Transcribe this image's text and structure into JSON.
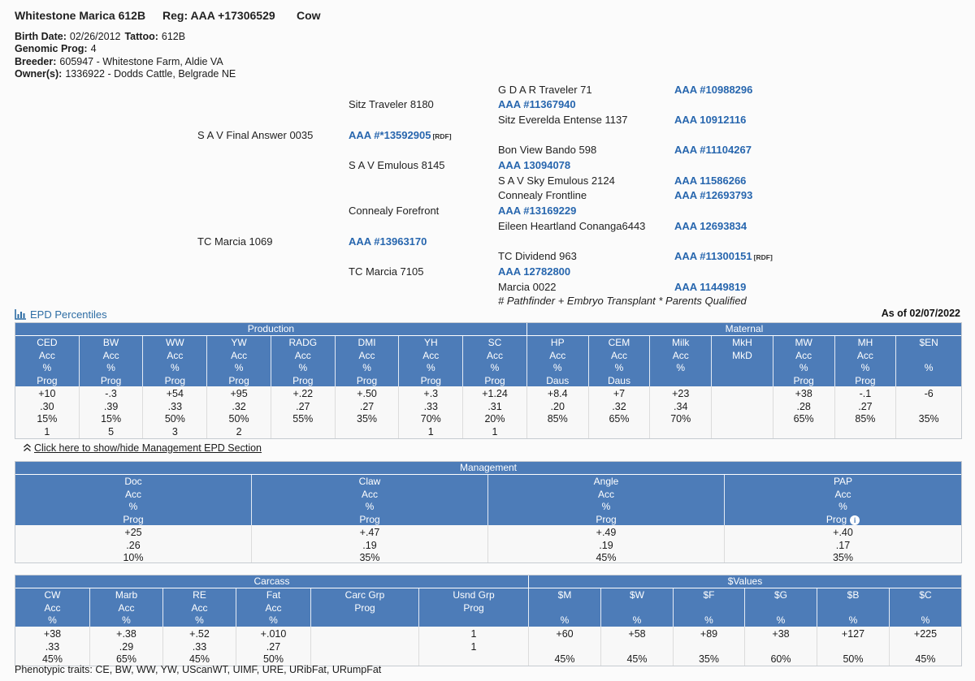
{
  "header": {
    "title": "Whitestone Marica 612B",
    "reg": "Reg: AAA +17306529",
    "sex": "Cow"
  },
  "info": {
    "lines": [
      [
        {
          "label": "Birth Date:",
          "value": "02/26/2012"
        },
        {
          "label": "Tattoo:",
          "value": "612B"
        }
      ],
      [
        {
          "label": "Genomic Prog:",
          "value": "4"
        }
      ],
      [
        {
          "label": "Breeder:",
          "value": "605947 - Whitestone Farm, Aldie VA"
        }
      ],
      [
        {
          "label": "Owner(s):",
          "value": "1336922 - Dodds Cattle, Belgrade NE"
        }
      ]
    ]
  },
  "pedigree": {
    "entries": [
      {
        "row": 1,
        "col": 3,
        "type": "name",
        "text": "G D A R Traveler 71"
      },
      {
        "row": 1,
        "col": 4,
        "type": "reg",
        "text": "AAA #10988296"
      },
      {
        "row": 2,
        "col": 2,
        "type": "name",
        "text": "Sitz Traveler 8180"
      },
      {
        "row": 2,
        "col": 3,
        "type": "reg",
        "text": "AAA #11367940"
      },
      {
        "row": 3,
        "col": 3,
        "type": "name",
        "text": "Sitz Everelda Entense 1137"
      },
      {
        "row": 3,
        "col": 4,
        "type": "reg",
        "text": "AAA 10912116"
      },
      {
        "row": 4,
        "col": 1,
        "type": "name",
        "text": "S A V Final Answer 0035"
      },
      {
        "row": 4,
        "col": 2,
        "type": "reg",
        "text": "AAA #*13592905",
        "suffix": "[RDF]"
      },
      {
        "row": 5,
        "col": 3,
        "type": "name",
        "text": "Bon View Bando 598"
      },
      {
        "row": 5,
        "col": 4,
        "type": "reg",
        "text": "AAA #11104267"
      },
      {
        "row": 6,
        "col": 2,
        "type": "name",
        "text": "S A V Emulous 8145"
      },
      {
        "row": 6,
        "col": 3,
        "type": "reg",
        "text": "AAA 13094078"
      },
      {
        "row": 7,
        "col": 3,
        "type": "name",
        "text": "S A V Sky Emulous 2124"
      },
      {
        "row": 7,
        "col": 4,
        "type": "reg",
        "text": "AAA 11586266"
      },
      {
        "row": 8,
        "col": 3,
        "type": "name",
        "text": "Connealy Frontline"
      },
      {
        "row": 8,
        "col": 4,
        "type": "reg",
        "text": "AAA #12693793"
      },
      {
        "row": 9,
        "col": 2,
        "type": "name",
        "text": "Connealy Forefront"
      },
      {
        "row": 9,
        "col": 3,
        "type": "reg",
        "text": "AAA #13169229"
      },
      {
        "row": 10,
        "col": 3,
        "type": "name",
        "text": "Eileen Heartland Conanga6443"
      },
      {
        "row": 10,
        "col": 4,
        "type": "reg",
        "text": "AAA 12693834"
      },
      {
        "row": 11,
        "col": 1,
        "type": "name",
        "text": "TC Marcia 1069"
      },
      {
        "row": 11,
        "col": 2,
        "type": "reg",
        "text": "AAA #13963170"
      },
      {
        "row": 12,
        "col": 3,
        "type": "name",
        "text": "TC Dividend 963"
      },
      {
        "row": 12,
        "col": 4,
        "type": "reg",
        "text": "AAA #11300151",
        "suffix": "[RDF]"
      },
      {
        "row": 13,
        "col": 2,
        "type": "name",
        "text": "TC Marcia 7105"
      },
      {
        "row": 13,
        "col": 3,
        "type": "reg",
        "text": "AAA 12782800"
      },
      {
        "row": 14,
        "col": 3,
        "type": "name",
        "text": "Marcia 0022"
      },
      {
        "row": 14,
        "col": 4,
        "type": "reg",
        "text": "AAA 11449819"
      },
      {
        "row": 15,
        "col": 3,
        "type": "footnote",
        "text": "# Pathfinder + Embryo Transplant * Parents Qualified"
      }
    ]
  },
  "epd_section": {
    "title": "EPD Percentiles",
    "as_of": "As of 02/07/2022",
    "toggle_label": "Click here to show/hide Management EPD Section"
  },
  "epd_table": {
    "groups": [
      {
        "label": "Production",
        "span": 8
      },
      {
        "label": "Maternal",
        "span": 7
      }
    ],
    "columns": [
      {
        "key": "ced",
        "header": [
          "CED",
          "Acc",
          "%",
          "Prog"
        ],
        "values": [
          "+10",
          ".30",
          "15%",
          "1"
        ]
      },
      {
        "key": "bw",
        "header": [
          "BW",
          "Acc",
          "%",
          "Prog"
        ],
        "values": [
          "-.3",
          ".39",
          "15%",
          "5"
        ]
      },
      {
        "key": "ww",
        "header": [
          "WW",
          "Acc",
          "%",
          "Prog"
        ],
        "values": [
          "+54",
          ".33",
          "50%",
          "3"
        ]
      },
      {
        "key": "yw",
        "header": [
          "YW",
          "Acc",
          "%",
          "Prog"
        ],
        "values": [
          "+95",
          ".32",
          "50%",
          "2"
        ]
      },
      {
        "key": "radg",
        "header": [
          "RADG",
          "Acc",
          "%",
          "Prog"
        ],
        "values": [
          "+.22",
          ".27",
          "55%",
          ""
        ]
      },
      {
        "key": "dmi",
        "header": [
          "DMI",
          "Acc",
          "%",
          "Prog"
        ],
        "values": [
          "+.50",
          ".27",
          "35%",
          ""
        ]
      },
      {
        "key": "yh",
        "header": [
          "YH",
          "Acc",
          "%",
          "Prog"
        ],
        "values": [
          "+.3",
          ".33",
          "70%",
          "1"
        ]
      },
      {
        "key": "sc",
        "header": [
          "SC",
          "Acc",
          "%",
          "Prog"
        ],
        "values": [
          "+1.24",
          ".31",
          "20%",
          "1"
        ]
      },
      {
        "key": "hp",
        "header": [
          "HP",
          "Acc",
          "%",
          "Daus"
        ],
        "values": [
          "+8.4",
          ".20",
          "85%",
          ""
        ]
      },
      {
        "key": "cem",
        "header": [
          "CEM",
          "Acc",
          "%",
          "Daus"
        ],
        "values": [
          "+7",
          ".32",
          "65%",
          ""
        ]
      },
      {
        "key": "milk",
        "header": [
          "Milk",
          "Acc",
          "%",
          ""
        ],
        "values": [
          "+23",
          ".34",
          "70%",
          ""
        ]
      },
      {
        "key": "mkh",
        "header": [
          "MkH",
          "MkD",
          "",
          ""
        ],
        "values": [
          "",
          "",
          "",
          ""
        ]
      },
      {
        "key": "mw",
        "header": [
          "MW",
          "Acc",
          "%",
          "Prog"
        ],
        "values": [
          "+38",
          ".28",
          "65%",
          ""
        ]
      },
      {
        "key": "mh",
        "header": [
          "MH",
          "Acc",
          "%",
          "Prog"
        ],
        "values": [
          "-.1",
          ".27",
          "85%",
          ""
        ]
      },
      {
        "key": "en",
        "header": [
          "$EN",
          "",
          "%",
          ""
        ],
        "values": [
          "-6",
          "",
          "35%",
          ""
        ]
      }
    ]
  },
  "management_table": {
    "groups": [
      {
        "label": "Management",
        "span": 4
      }
    ],
    "columns": [
      {
        "key": "doc",
        "header": [
          "Doc",
          "Acc",
          "%",
          "Prog"
        ],
        "values": [
          "+25",
          ".26",
          "10%"
        ]
      },
      {
        "key": "claw",
        "header": [
          "Claw",
          "Acc",
          "%",
          "Prog"
        ],
        "values": [
          "+.47",
          ".19",
          "35%"
        ]
      },
      {
        "key": "angle",
        "header": [
          "Angle",
          "Acc",
          "%",
          "Prog"
        ],
        "values": [
          "+.49",
          ".19",
          "45%"
        ]
      },
      {
        "key": "pap",
        "header": [
          "PAP",
          "Acc",
          "%",
          "Prog"
        ],
        "values": [
          "+.40",
          ".17",
          "35%"
        ],
        "info_icon": true
      }
    ]
  },
  "carcass_table": {
    "groups": [
      {
        "label": "Carcass",
        "span": 6
      },
      {
        "label": "$Values",
        "span": 6
      }
    ],
    "columns": [
      {
        "key": "cw",
        "header": [
          "CW",
          "Acc",
          "%"
        ],
        "values": [
          "+38",
          ".33",
          "45%"
        ]
      },
      {
        "key": "marb",
        "header": [
          "Marb",
          "Acc",
          "%"
        ],
        "values": [
          "+.38",
          ".29",
          "65%"
        ]
      },
      {
        "key": "re",
        "header": [
          "RE",
          "Acc",
          "%"
        ],
        "values": [
          "+.52",
          ".33",
          "45%"
        ]
      },
      {
        "key": "fat",
        "header": [
          "Fat",
          "Acc",
          "%"
        ],
        "values": [
          "+.010",
          ".27",
          "50%"
        ]
      },
      {
        "key": "carcgrp",
        "header": [
          "Carc Grp",
          "Prog",
          ""
        ],
        "values": [
          "",
          "",
          ""
        ]
      },
      {
        "key": "usndgrp",
        "header": [
          "Usnd Grp",
          "Prog",
          ""
        ],
        "values": [
          "1",
          "1",
          ""
        ]
      },
      {
        "key": "dm",
        "header": [
          "$M",
          "",
          "%"
        ],
        "values": [
          "+60",
          "",
          "45%"
        ]
      },
      {
        "key": "dw",
        "header": [
          "$W",
          "",
          "%"
        ],
        "values": [
          "+58",
          "",
          "45%"
        ]
      },
      {
        "key": "df",
        "header": [
          "$F",
          "",
          "%"
        ],
        "values": [
          "+89",
          "",
          "35%"
        ]
      },
      {
        "key": "dg",
        "header": [
          "$G",
          "",
          "%"
        ],
        "values": [
          "+38",
          "",
          "60%"
        ]
      },
      {
        "key": "db",
        "header": [
          "$B",
          "",
          "%"
        ],
        "values": [
          "+127",
          "",
          "50%"
        ]
      },
      {
        "key": "dc",
        "header": [
          "$C",
          "",
          "%"
        ],
        "values": [
          "+225",
          "",
          "45%"
        ]
      }
    ]
  },
  "footer": {
    "phenotypic": "Phenotypic traits: CE, BW, WW, YW, UScanWT, UIMF, URE, URibFat, URumpFat"
  },
  "colors": {
    "table_header_blue": "#4d7cb8",
    "reg_link_blue": "#2766ae",
    "section_link_blue": "#2e6da4",
    "data_row_bg": "#f8f8f8",
    "page_bg": "#fbfbfb"
  }
}
